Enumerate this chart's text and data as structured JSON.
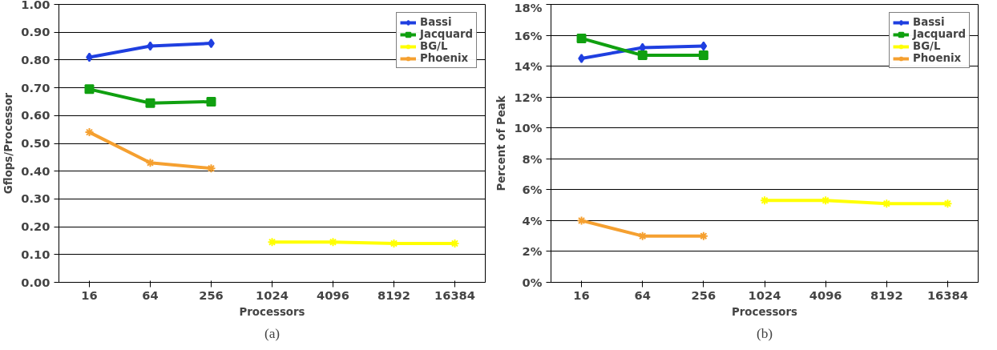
{
  "chart_data": [
    {
      "type": "line",
      "xlabel": "Processors",
      "ylabel": "Gflops/Processor",
      "categories": [
        "16",
        "64",
        "256",
        "1024",
        "4096",
        "8192",
        "16384"
      ],
      "series": [
        {
          "name": "Bassi",
          "color": "#1f3fe0",
          "marker": "diamond",
          "values": [
            0.81,
            0.85,
            0.86,
            null,
            null,
            null,
            null
          ]
        },
        {
          "name": "Jacquard",
          "color": "#10a010",
          "marker": "square",
          "values": [
            0.695,
            0.645,
            0.65,
            null,
            null,
            null,
            null
          ]
        },
        {
          "name": "BG/L",
          "color": "#ffff00",
          "marker": "cross",
          "values": [
            null,
            null,
            null,
            0.145,
            0.145,
            0.14,
            0.14
          ]
        },
        {
          "name": "Phoenix",
          "color": "#f5a030",
          "marker": "cross",
          "values": [
            0.54,
            0.43,
            0.41,
            null,
            null,
            null,
            null
          ]
        }
      ],
      "ylim": [
        0,
        1
      ],
      "yticks": [
        {
          "value": 0,
          "label": "0.00"
        },
        {
          "value": 0.1,
          "label": "0.10"
        },
        {
          "value": 0.2,
          "label": "0.20"
        },
        {
          "value": 0.3,
          "label": "0.30"
        },
        {
          "value": 0.4,
          "label": "0.40"
        },
        {
          "value": 0.5,
          "label": "0.50"
        },
        {
          "value": 0.6,
          "label": "0.60"
        },
        {
          "value": 0.7,
          "label": "0.70"
        },
        {
          "value": 0.8,
          "label": "0.80"
        },
        {
          "value": 0.9,
          "label": "0.90"
        },
        {
          "value": 1,
          "label": "1.00"
        }
      ],
      "grid": "y",
      "legend": "top right",
      "annotations": [
        "(a)"
      ]
    },
    {
      "type": "line",
      "xlabel": "Processors",
      "ylabel": "Percent of Peak",
      "categories": [
        "16",
        "64",
        "256",
        "1024",
        "4096",
        "8192",
        "16384"
      ],
      "series": [
        {
          "name": "Bassi",
          "color": "#1f3fe0",
          "marker": "diamond",
          "values": [
            14.5,
            15.2,
            15.3,
            null,
            null,
            null,
            null
          ]
        },
        {
          "name": "Jacquard",
          "color": "#10a010",
          "marker": "square",
          "values": [
            15.8,
            14.7,
            14.7,
            null,
            null,
            null,
            null
          ]
        },
        {
          "name": "BG/L",
          "color": "#ffff00",
          "marker": "cross",
          "values": [
            null,
            null,
            null,
            5.3,
            5.3,
            5.1,
            5.1
          ]
        },
        {
          "name": "Phoenix",
          "color": "#f5a030",
          "marker": "cross",
          "values": [
            4.0,
            3.0,
            3.0,
            null,
            null,
            null,
            null
          ]
        }
      ],
      "ylim": [
        0,
        18
      ],
      "yticks": [
        {
          "value": 0,
          "label": "0%"
        },
        {
          "value": 2,
          "label": "2%"
        },
        {
          "value": 4,
          "label": "4%"
        },
        {
          "value": 6,
          "label": "6%"
        },
        {
          "value": 8,
          "label": "8%"
        },
        {
          "value": 10,
          "label": "10%"
        },
        {
          "value": 12,
          "label": "12%"
        },
        {
          "value": 14,
          "label": "14%"
        },
        {
          "value": 16,
          "label": "16%"
        },
        {
          "value": 18,
          "label": "18%"
        }
      ],
      "grid": "y",
      "legend": "top right",
      "annotations": [
        "(b)"
      ]
    }
  ]
}
